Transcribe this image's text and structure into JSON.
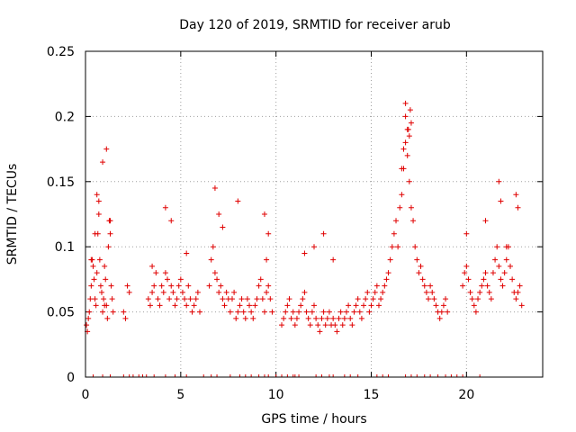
{
  "chart_data": {
    "type": "scatter",
    "title": "Day 120 of 2019, SRMTID for receiver arub",
    "xlabel": "GPS time / hours",
    "ylabel": "SRMTID / TECUs",
    "xlim": [
      0,
      24
    ],
    "ylim": [
      0,
      0.25
    ],
    "xticks": [
      0,
      5,
      10,
      15,
      20
    ],
    "yticks": [
      0,
      0.05,
      0.1,
      0.15,
      0.2,
      0.25
    ],
    "xtick_labels": [
      "0",
      "5",
      "10",
      "15",
      "20"
    ],
    "ytick_labels": [
      "0",
      "0.05",
      "0.1",
      "0.15",
      "0.2",
      "0.25"
    ],
    "grid": true,
    "marker": "+",
    "color": "#e00000",
    "series": [
      {
        "name": "SRMTID",
        "x": [
          0.05,
          0.1,
          0.15,
          0.2,
          0.25,
          0.3,
          0.35,
          0.4,
          0.45,
          0.5,
          0.55,
          0.6,
          0.65,
          0.7,
          0.75,
          0.8,
          0.85,
          0.9,
          0.95,
          1.0,
          1.05,
          1.1,
          1.15,
          1.2,
          1.25,
          1.3,
          1.35,
          1.4,
          1.45,
          2.0,
          2.1,
          2.2,
          2.3,
          3.3,
          3.4,
          3.5,
          3.6,
          3.7,
          3.8,
          3.9,
          4.0,
          4.1,
          4.2,
          4.3,
          4.4,
          4.5,
          4.6,
          4.7,
          4.8,
          4.9,
          5.0,
          5.1,
          5.2,
          5.3,
          5.4,
          5.5,
          5.6,
          5.7,
          5.8,
          5.9,
          6.0,
          6.5,
          6.6,
          6.7,
          6.8,
          6.9,
          7.0,
          7.1,
          7.2,
          7.3,
          7.4,
          7.5,
          7.6,
          7.7,
          7.8,
          7.9,
          8.0,
          8.1,
          8.2,
          8.3,
          8.4,
          8.5,
          8.6,
          8.7,
          8.8,
          8.9,
          9.0,
          9.1,
          9.2,
          9.3,
          9.4,
          9.5,
          9.6,
          9.7,
          9.8,
          10.3,
          10.4,
          10.5,
          10.6,
          10.7,
          10.8,
          10.9,
          11.0,
          11.1,
          11.2,
          11.3,
          11.4,
          11.5,
          11.6,
          11.7,
          11.8,
          11.9,
          12.0,
          12.1,
          12.2,
          12.3,
          12.4,
          12.5,
          12.6,
          12.7,
          12.8,
          12.9,
          13.0,
          13.1,
          13.2,
          13.3,
          13.4,
          13.5,
          13.6,
          13.7,
          13.8,
          13.9,
          14.0,
          14.1,
          14.2,
          14.3,
          14.4,
          14.5,
          14.6,
          14.7,
          14.8,
          14.9,
          15.0,
          15.1,
          15.2,
          15.3,
          15.4,
          15.5,
          15.6,
          15.7,
          15.8,
          15.9,
          16.0,
          16.1,
          16.2,
          16.3,
          16.4,
          16.5,
          16.6,
          16.7,
          16.8,
          16.9,
          17.0,
          17.1,
          17.2,
          17.3,
          17.4,
          17.5,
          17.6,
          17.7,
          17.8,
          17.9,
          18.0,
          18.1,
          18.2,
          18.3,
          18.4,
          18.5,
          18.6,
          18.7,
          18.8,
          18.9,
          19.0,
          19.8,
          19.9,
          20.0,
          20.1,
          20.2,
          20.3,
          20.4,
          20.5,
          20.6,
          20.7,
          20.8,
          20.9,
          21.0,
          21.1,
          21.2,
          21.3,
          21.4,
          21.5,
          21.6,
          21.7,
          21.8,
          21.9,
          22.0,
          22.1,
          22.2,
          22.3,
          22.4,
          22.5,
          22.6,
          22.7,
          22.8,
          22.9,
          0.3,
          0.6,
          0.9,
          1.1,
          1.3,
          0.5,
          0.7,
          1.0,
          3.5,
          4.2,
          4.5,
          5.3,
          6.8,
          7.0,
          7.2,
          8.0,
          9.4,
          9.6,
          9.5,
          11.5,
          12.0,
          12.5,
          13.0,
          16.8,
          16.9,
          17.0,
          16.7,
          16.6,
          17.1,
          16.8,
          17.05,
          16.95,
          20.0,
          21.0,
          21.7,
          21.8,
          22.1,
          22.6,
          22.7
        ],
        "y": [
          0.04,
          0.035,
          0.045,
          0.05,
          0.06,
          0.07,
          0.09,
          0.085,
          0.075,
          0.06,
          0.055,
          0.08,
          0.11,
          0.135,
          0.09,
          0.07,
          0.065,
          0.05,
          0.06,
          0.085,
          0.075,
          0.055,
          0.045,
          0.1,
          0.12,
          0.11,
          0.07,
          0.06,
          0.05,
          0.05,
          0.045,
          0.07,
          0.065,
          0.06,
          0.055,
          0.065,
          0.07,
          0.08,
          0.06,
          0.055,
          0.07,
          0.065,
          0.08,
          0.075,
          0.06,
          0.07,
          0.065,
          0.055,
          0.06,
          0.07,
          0.075,
          0.065,
          0.06,
          0.055,
          0.07,
          0.06,
          0.05,
          0.055,
          0.06,
          0.065,
          0.05,
          0.07,
          0.09,
          0.1,
          0.08,
          0.075,
          0.065,
          0.07,
          0.06,
          0.055,
          0.065,
          0.06,
          0.05,
          0.06,
          0.065,
          0.045,
          0.05,
          0.055,
          0.06,
          0.05,
          0.045,
          0.06,
          0.055,
          0.05,
          0.045,
          0.055,
          0.06,
          0.07,
          0.075,
          0.06,
          0.05,
          0.065,
          0.07,
          0.06,
          0.05,
          0.04,
          0.045,
          0.05,
          0.055,
          0.06,
          0.045,
          0.05,
          0.04,
          0.045,
          0.05,
          0.055,
          0.06,
          0.065,
          0.05,
          0.045,
          0.04,
          0.05,
          0.055,
          0.045,
          0.04,
          0.035,
          0.045,
          0.05,
          0.04,
          0.045,
          0.05,
          0.04,
          0.045,
          0.04,
          0.035,
          0.045,
          0.05,
          0.04,
          0.045,
          0.05,
          0.055,
          0.045,
          0.04,
          0.05,
          0.055,
          0.06,
          0.05,
          0.045,
          0.055,
          0.06,
          0.065,
          0.05,
          0.055,
          0.06,
          0.065,
          0.07,
          0.055,
          0.06,
          0.065,
          0.07,
          0.075,
          0.08,
          0.09,
          0.1,
          0.11,
          0.12,
          0.1,
          0.13,
          0.14,
          0.16,
          0.18,
          0.17,
          0.15,
          0.13,
          0.12,
          0.1,
          0.09,
          0.08,
          0.085,
          0.075,
          0.07,
          0.065,
          0.06,
          0.07,
          0.065,
          0.06,
          0.055,
          0.05,
          0.045,
          0.05,
          0.055,
          0.06,
          0.05,
          0.07,
          0.08,
          0.085,
          0.075,
          0.065,
          0.06,
          0.055,
          0.05,
          0.06,
          0.065,
          0.07,
          0.075,
          0.08,
          0.07,
          0.065,
          0.06,
          0.08,
          0.09,
          0.1,
          0.085,
          0.075,
          0.07,
          0.08,
          0.09,
          0.1,
          0.085,
          0.075,
          0.065,
          0.06,
          0.065,
          0.07,
          0.055,
          0.09,
          0.14,
          0.165,
          0.175,
          0.12,
          0.11,
          0.125,
          0.055,
          0.085,
          0.13,
          0.12,
          0.095,
          0.145,
          0.125,
          0.115,
          0.135,
          0.125,
          0.11,
          0.09,
          0.095,
          0.1,
          0.11,
          0.09,
          0.2,
          0.19,
          0.185,
          0.175,
          0.16,
          0.195,
          0.21,
          0.205,
          0.19,
          0.11,
          0.12,
          0.15,
          0.135,
          0.1,
          0.14,
          0.13
        ]
      }
    ],
    "zero_markers_x": [
      0.4,
      0.9,
      1.3,
      2.0,
      2.3,
      2.5,
      2.8,
      3.0,
      3.2,
      3.6,
      4.2,
      4.7,
      5.3,
      6.2,
      6.6,
      6.9,
      7.6,
      8.1,
      8.4,
      8.7,
      9.1,
      9.4,
      9.6,
      10.0,
      10.3,
      10.6,
      10.9,
      11.0,
      11.2,
      12.1,
      12.4,
      12.8,
      13.0,
      13.6,
      13.9,
      14.3,
      15.3,
      15.6,
      15.9,
      16.8,
      17.1,
      17.4,
      17.8,
      18.1,
      18.5,
      18.9,
      19.2,
      19.5,
      19.8,
      20.7
    ]
  }
}
